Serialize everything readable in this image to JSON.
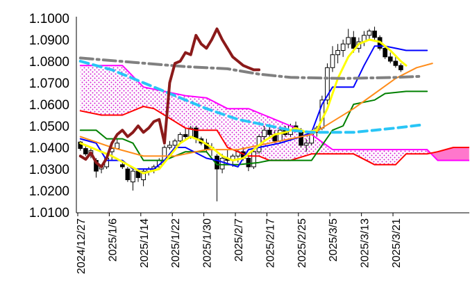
{
  "chart_data": {
    "type": "candlestick-ichimoku",
    "title": "",
    "xlabel": "",
    "ylabel": "",
    "ylim": [
      1.01,
      1.1
    ],
    "yticks": [
      "1.1000",
      "1.0900",
      "1.0800",
      "1.0700",
      "1.0600",
      "1.0500",
      "1.0400",
      "1.0300",
      "1.0200",
      "1.0100"
    ],
    "ytick_values": [
      1.1,
      1.09,
      1.08,
      1.07,
      1.06,
      1.05,
      1.04,
      1.03,
      1.02,
      1.01
    ],
    "xticks": [
      "2024/12/27",
      "2025/1/6",
      "2025/1/14",
      "2025/1/22",
      "2025/1/30",
      "2025/2/7",
      "2025/2/17",
      "2025/2/25",
      "2025/3/5",
      "2025/3/13",
      "2025/3/21"
    ],
    "xtick_index": [
      0,
      6,
      12,
      18,
      24,
      30,
      36,
      42,
      48,
      54,
      60
    ],
    "n_slots": 74,
    "candles": [
      [
        1.0425,
        1.043,
        1.0385,
        1.0395
      ],
      [
        1.0395,
        1.041,
        1.036,
        1.037
      ],
      [
        1.037,
        1.04,
        1.035,
        1.0385
      ],
      [
        1.034,
        1.035,
        1.026,
        1.029
      ],
      [
        1.03,
        1.032,
        1.028,
        1.031
      ],
      [
        1.031,
        1.036,
        1.03,
        1.035
      ],
      [
        1.038,
        1.04,
        1.034,
        1.0395
      ],
      [
        1.0395,
        1.044,
        1.039,
        1.042
      ],
      [
        1.032,
        1.034,
        1.03,
        1.031
      ],
      [
        1.03,
        1.031,
        1.024,
        1.025
      ],
      [
        1.024,
        1.03,
        1.02,
        1.029
      ],
      [
        1.029,
        1.03,
        1.024,
        1.026
      ],
      [
        1.025,
        1.03,
        1.022,
        1.029
      ],
      [
        1.029,
        1.031,
        1.027,
        1.03
      ],
      [
        1.03,
        1.032,
        1.028,
        1.031
      ],
      [
        1.031,
        1.035,
        1.03,
        1.034
      ],
      [
        1.034,
        1.041,
        1.033,
        1.04
      ],
      [
        1.04,
        1.043,
        1.039,
        1.041
      ],
      [
        1.041,
        1.044,
        1.04,
        1.043
      ],
      [
        1.043,
        1.047,
        1.042,
        1.046
      ],
      [
        1.046,
        1.049,
        1.044,
        1.045
      ],
      [
        1.045,
        1.05,
        1.044,
        1.049
      ],
      [
        1.049,
        1.05,
        1.042,
        1.044
      ],
      [
        1.044,
        1.045,
        1.041,
        1.042
      ],
      [
        1.042,
        1.044,
        1.038,
        1.039
      ],
      [
        1.039,
        1.042,
        1.036,
        1.04
      ],
      [
        1.036,
        1.037,
        1.015,
        1.03
      ],
      [
        1.03,
        1.037,
        1.028,
        1.035
      ],
      [
        1.035,
        1.039,
        1.032,
        1.034
      ],
      [
        1.034,
        1.037,
        1.031,
        1.036
      ],
      [
        1.036,
        1.039,
        1.033,
        1.038
      ],
      [
        1.038,
        1.04,
        1.034,
        1.035
      ],
      [
        1.035,
        1.037,
        1.029,
        1.031
      ],
      [
        1.031,
        1.039,
        1.03,
        1.038
      ],
      [
        1.038,
        1.046,
        1.037,
        1.045
      ],
      [
        1.045,
        1.05,
        1.043,
        1.048
      ],
      [
        1.048,
        1.05,
        1.044,
        1.046
      ],
      [
        1.046,
        1.048,
        1.042,
        1.043
      ],
      [
        1.043,
        1.049,
        1.042,
        1.048
      ],
      [
        1.048,
        1.05,
        1.045,
        1.046
      ],
      [
        1.046,
        1.051,
        1.045,
        1.05
      ],
      [
        1.05,
        1.052,
        1.047,
        1.048
      ],
      [
        1.048,
        1.049,
        1.04,
        1.041
      ],
      [
        1.041,
        1.044,
        1.038,
        1.042
      ],
      [
        1.042,
        1.048,
        1.041,
        1.047
      ],
      [
        1.047,
        1.05,
        1.045,
        1.049
      ],
      [
        1.049,
        1.064,
        1.048,
        1.062
      ],
      [
        1.062,
        1.079,
        1.06,
        1.077
      ],
      [
        1.077,
        1.087,
        1.075,
        1.083
      ],
      [
        1.083,
        1.088,
        1.079,
        1.085
      ],
      [
        1.085,
        1.09,
        1.082,
        1.088
      ],
      [
        1.088,
        1.095,
        1.086,
        1.091
      ],
      [
        1.091,
        1.094,
        1.084,
        1.086
      ],
      [
        1.086,
        1.091,
        1.084,
        1.089
      ],
      [
        1.089,
        1.094,
        1.087,
        1.092
      ],
      [
        1.092,
        1.095,
        1.09,
        1.094
      ],
      [
        1.094,
        1.096,
        1.089,
        1.091
      ],
      [
        1.091,
        1.092,
        1.085,
        1.086
      ],
      [
        1.086,
        1.087,
        1.081,
        1.082
      ],
      [
        1.082,
        1.084,
        1.079,
        1.08
      ],
      [
        1.08,
        1.082,
        1.077,
        1.078
      ],
      [
        1.078,
        1.079,
        1.075,
        1.076
      ]
    ],
    "series": [
      {
        "color": "#8B1A1A",
        "width": 4,
        "dash": "",
        "points": [
          [
            0,
            1.036
          ],
          [
            1,
            1.0345
          ],
          [
            2,
            1.0375
          ],
          [
            3,
            1.033
          ],
          [
            4,
            1.031
          ],
          [
            5,
            1.035
          ],
          [
            6,
            1.042
          ],
          [
            7,
            1.046
          ],
          [
            8,
            1.048
          ],
          [
            9,
            1.045
          ],
          [
            10,
            1.047
          ],
          [
            11,
            1.05
          ],
          [
            12,
            1.047
          ],
          [
            13,
            1.049
          ],
          [
            14,
            1.052
          ],
          [
            15,
            1.053
          ],
          [
            16,
            1.042
          ],
          [
            17,
            1.07
          ],
          [
            18,
            1.079
          ],
          [
            19,
            1.08
          ],
          [
            20,
            1.084
          ],
          [
            21,
            1.083
          ],
          [
            22,
            1.092
          ],
          [
            23,
            1.088
          ],
          [
            24,
            1.086
          ],
          [
            25,
            1.09
          ],
          [
            26,
            1.095
          ],
          [
            27,
            1.09
          ],
          [
            28,
            1.086
          ],
          [
            29,
            1.082
          ],
          [
            30,
            1.08
          ],
          [
            31,
            1.078
          ],
          [
            32,
            1.077
          ],
          [
            33,
            1.076
          ],
          [
            34,
            1.076
          ]
        ]
      },
      {
        "color": "#808080",
        "width": 4,
        "dash": "18,6,3,6",
        "points": [
          [
            0,
            1.0815
          ],
          [
            10,
            1.0795
          ],
          [
            20,
            1.0775
          ],
          [
            28,
            1.0765
          ],
          [
            34,
            1.074
          ],
          [
            40,
            1.0725
          ],
          [
            50,
            1.072
          ],
          [
            60,
            1.0725
          ],
          [
            65,
            1.073
          ]
        ]
      },
      {
        "color": "#29C5F6",
        "width": 4,
        "dash": "12,7",
        "points": [
          [
            0,
            1.08
          ],
          [
            6,
            1.076
          ],
          [
            12,
            1.07
          ],
          [
            18,
            1.064
          ],
          [
            24,
            1.058
          ],
          [
            30,
            1.053
          ],
          [
            36,
            1.05
          ],
          [
            40,
            1.048
          ],
          [
            44,
            1.047
          ],
          [
            48,
            1.047
          ],
          [
            52,
            1.047
          ],
          [
            56,
            1.048
          ],
          [
            60,
            1.049
          ],
          [
            65,
            1.0505
          ]
        ]
      },
      {
        "color": "#FF00FF",
        "width": 2,
        "dash": "",
        "points": [
          [
            0,
            1.078
          ],
          [
            4,
            1.078
          ],
          [
            8,
            1.078
          ],
          [
            12,
            1.068
          ],
          [
            16,
            1.066
          ],
          [
            20,
            1.064
          ],
          [
            24,
            1.063
          ],
          [
            28,
            1.058
          ],
          [
            32,
            1.058
          ],
          [
            36,
            1.054
          ],
          [
            40,
            1.05
          ],
          [
            44,
            1.046
          ],
          [
            48,
            1.039
          ],
          [
            52,
            1.039
          ],
          [
            56,
            1.039
          ],
          [
            60,
            1.039
          ],
          [
            66,
            1.039
          ],
          [
            68,
            1.034
          ],
          [
            74,
            1.034
          ]
        ]
      },
      {
        "color": "#FF0000",
        "width": 2,
        "dash": "",
        "points": [
          [
            0,
            1.057
          ],
          [
            4,
            1.055
          ],
          [
            8,
            1.055
          ],
          [
            12,
            1.059
          ],
          [
            14,
            1.058
          ],
          [
            16,
            1.055
          ],
          [
            18,
            1.052
          ],
          [
            20,
            1.049
          ],
          [
            22,
            1.048
          ],
          [
            24,
            1.048
          ],
          [
            26,
            1.048
          ],
          [
            28,
            1.04
          ],
          [
            30,
            1.038
          ],
          [
            32,
            1.036
          ],
          [
            34,
            1.036
          ],
          [
            36,
            1.034
          ],
          [
            40,
            1.034
          ],
          [
            44,
            1.037
          ],
          [
            48,
            1.037
          ],
          [
            52,
            1.037
          ],
          [
            56,
            1.032
          ],
          [
            60,
            1.032
          ],
          [
            62,
            1.037
          ],
          [
            66,
            1.037
          ],
          [
            68,
            1.038
          ],
          [
            71,
            1.04
          ],
          [
            74,
            1.04
          ]
        ]
      },
      {
        "color": "#008000",
        "width": 2,
        "dash": "",
        "points": [
          [
            0,
            1.048
          ],
          [
            3,
            1.048
          ],
          [
            5,
            1.044
          ],
          [
            8,
            1.044
          ],
          [
            10,
            1.042
          ],
          [
            12,
            1.034
          ],
          [
            16,
            1.034
          ],
          [
            20,
            1.038
          ],
          [
            24,
            1.038
          ],
          [
            26,
            1.032
          ],
          [
            30,
            1.032
          ],
          [
            34,
            1.033
          ],
          [
            36,
            1.034
          ],
          [
            40,
            1.034
          ],
          [
            44,
            1.034
          ],
          [
            46,
            1.041
          ],
          [
            48,
            1.048
          ],
          [
            50,
            1.05
          ],
          [
            52,
            1.06
          ],
          [
            56,
            1.062
          ],
          [
            58,
            1.065
          ],
          [
            62,
            1.066
          ],
          [
            66,
            1.066
          ]
        ]
      },
      {
        "color": "#0000FF",
        "width": 2,
        "dash": "",
        "points": [
          [
            0,
            1.044
          ],
          [
            3,
            1.042
          ],
          [
            5,
            1.034
          ],
          [
            8,
            1.034
          ],
          [
            10,
            1.03
          ],
          [
            14,
            1.03
          ],
          [
            16,
            1.034
          ],
          [
            18,
            1.04
          ],
          [
            20,
            1.04
          ],
          [
            24,
            1.035
          ],
          [
            26,
            1.034
          ],
          [
            30,
            1.031
          ],
          [
            32,
            1.039
          ],
          [
            34,
            1.04
          ],
          [
            38,
            1.042
          ],
          [
            42,
            1.045
          ],
          [
            44,
            1.047
          ],
          [
            46,
            1.06
          ],
          [
            48,
            1.068
          ],
          [
            52,
            1.068
          ],
          [
            54,
            1.078
          ],
          [
            56,
            1.087
          ],
          [
            58,
            1.087
          ],
          [
            60,
            1.086
          ],
          [
            62,
            1.085
          ],
          [
            66,
            1.085
          ]
        ]
      },
      {
        "color": "#FFFF00",
        "width": 3,
        "dash": "",
        "points": [
          [
            0,
            1.042
          ],
          [
            3,
            1.039
          ],
          [
            6,
            1.036
          ],
          [
            9,
            1.032
          ],
          [
            12,
            1.028
          ],
          [
            15,
            1.03
          ],
          [
            17,
            1.036
          ],
          [
            19,
            1.042
          ],
          [
            21,
            1.045
          ],
          [
            23,
            1.043
          ],
          [
            25,
            1.04
          ],
          [
            27,
            1.036
          ],
          [
            29,
            1.034
          ],
          [
            31,
            1.035
          ],
          [
            33,
            1.039
          ],
          [
            35,
            1.043
          ],
          [
            37,
            1.046
          ],
          [
            39,
            1.047
          ],
          [
            41,
            1.049
          ],
          [
            43,
            1.047
          ],
          [
            45,
            1.048
          ],
          [
            47,
            1.058
          ],
          [
            49,
            1.072
          ],
          [
            51,
            1.082
          ],
          [
            53,
            1.088
          ],
          [
            55,
            1.09
          ],
          [
            57,
            1.089
          ],
          [
            59,
            1.085
          ],
          [
            61,
            1.08
          ],
          [
            62,
            1.078
          ]
        ]
      },
      {
        "color": "#FF8C1A",
        "width": 2,
        "dash": "",
        "points": [
          [
            0,
            1.045
          ],
          [
            6,
            1.04
          ],
          [
            12,
            1.036
          ],
          [
            18,
            1.036
          ],
          [
            24,
            1.039
          ],
          [
            30,
            1.039
          ],
          [
            36,
            1.042
          ],
          [
            40,
            1.044
          ],
          [
            44,
            1.046
          ],
          [
            48,
            1.052
          ],
          [
            52,
            1.058
          ],
          [
            56,
            1.065
          ],
          [
            60,
            1.072
          ],
          [
            64,
            1.077
          ],
          [
            67,
            1.079
          ]
        ]
      }
    ],
    "cloud": {
      "fill_color": "#FF66FF",
      "pattern": "dots",
      "note_upper": "magenta line",
      "note_lower": "red line"
    },
    "cloud_tail_fill": "#FF77CC"
  }
}
